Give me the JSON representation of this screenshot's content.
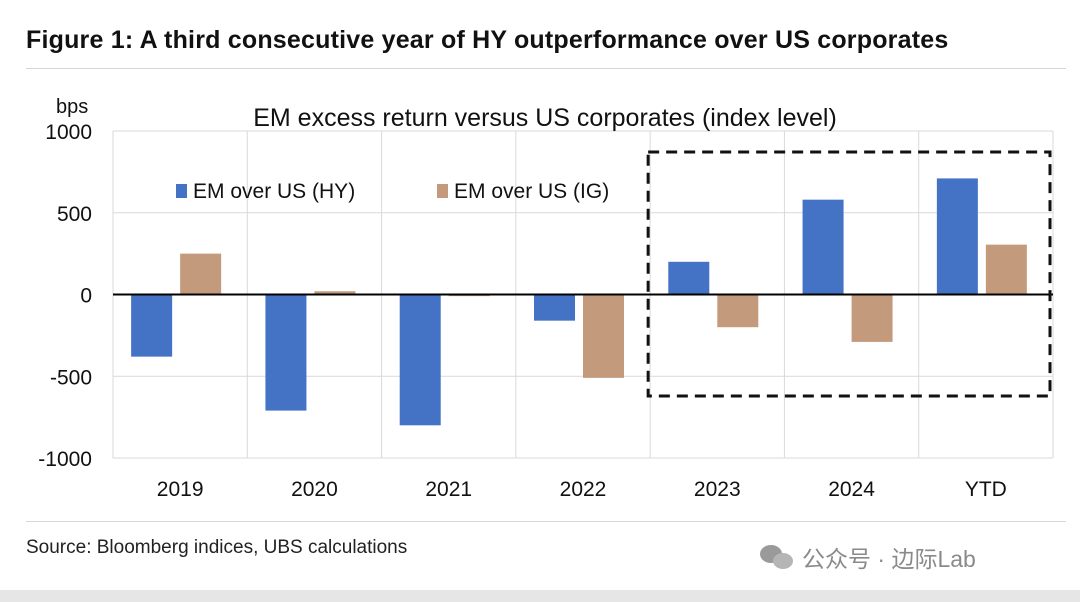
{
  "header": {
    "figure_title": "Figure 1: A third consecutive year of HY outperformance over US corporates"
  },
  "footer": {
    "source": "Source: Bloomberg indices, UBS calculations",
    "watermark": "公众号 · 边际Lab"
  },
  "chart_data": {
    "type": "bar",
    "title": "EM excess return versus US corporates (index level)",
    "ylabel": "bps",
    "xlabel": "",
    "categories": [
      "2019",
      "2020",
      "2021",
      "2022",
      "2023",
      "2024",
      "YTD"
    ],
    "series": [
      {
        "name": "EM over US  (HY)",
        "color": "#4472c4",
        "values": [
          -380,
          -710,
          -800,
          -160,
          200,
          580,
          710
        ]
      },
      {
        "name": "EM over US  (IG)",
        "color": "#c49a7c",
        "values": [
          250,
          20,
          -10,
          -510,
          -200,
          -290,
          305
        ]
      }
    ],
    "ylim": [
      -1000,
      1000
    ],
    "yticks": [
      1000,
      500,
      0,
      -500,
      -1000
    ],
    "grid": true,
    "legend_position": "top-left",
    "highlight": {
      "categories": [
        "2023",
        "2024",
        "YTD"
      ],
      "style": "dashed-box"
    }
  }
}
